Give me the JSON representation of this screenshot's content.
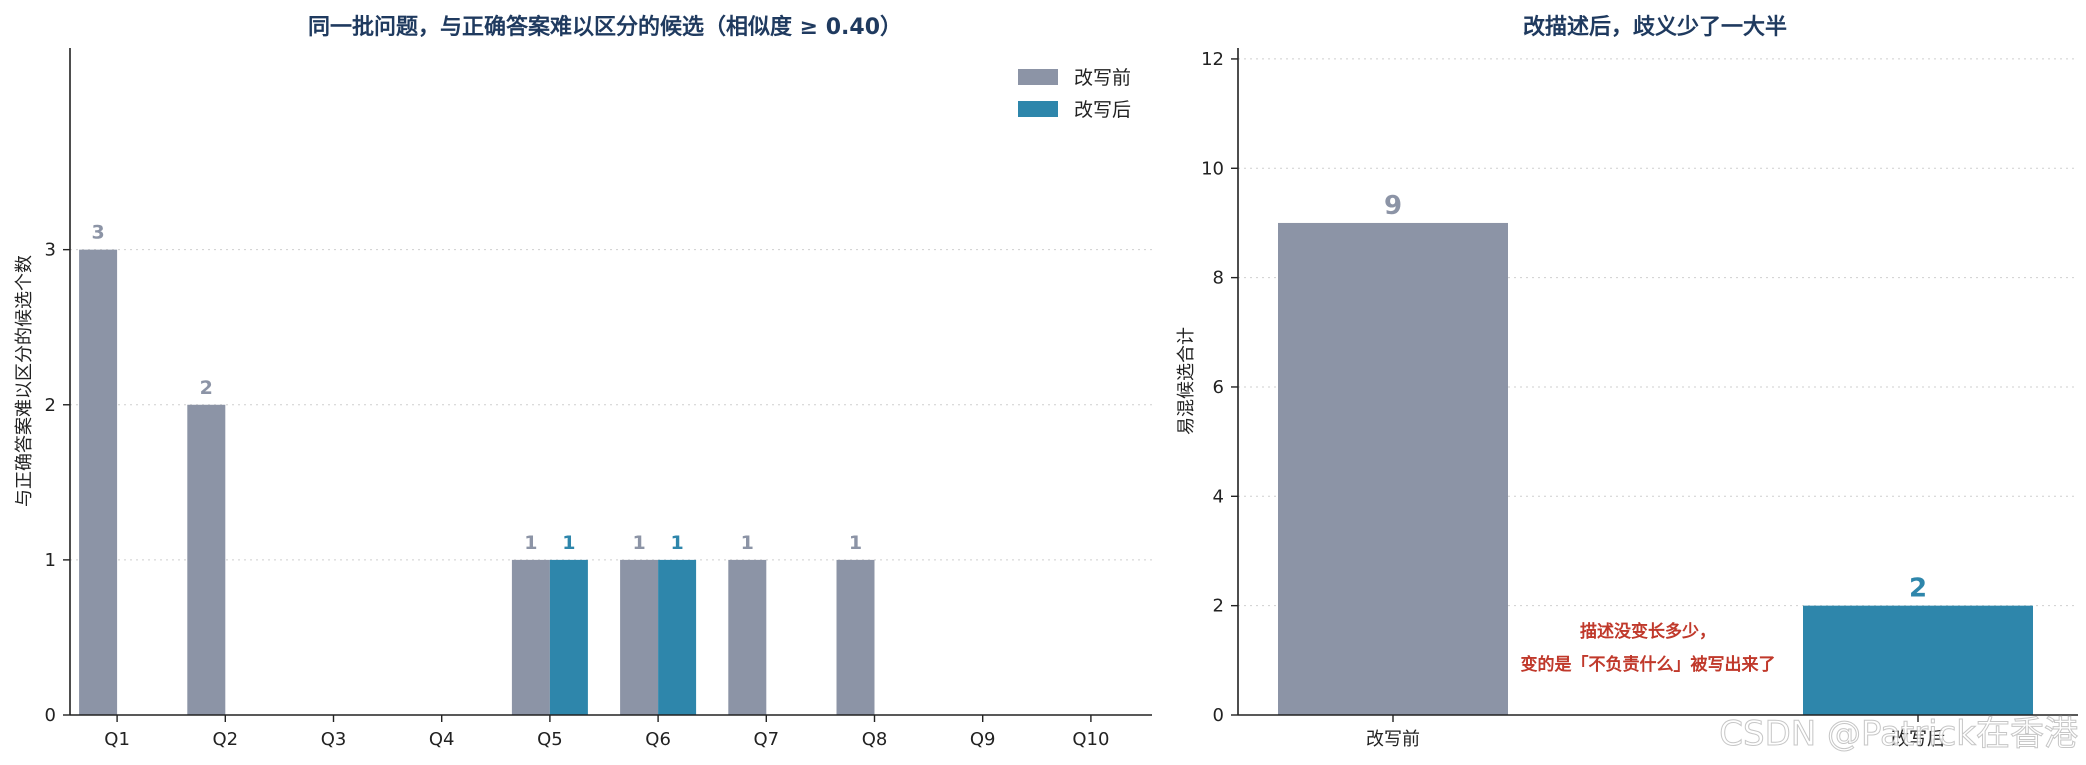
{
  "colors": {
    "before": "#8c94a6",
    "after": "#2e86ab",
    "title": "#1f3a5f",
    "annotation": "#c0392b"
  },
  "chart_data": [
    {
      "type": "bar",
      "title": "同一批问题，与正确答案难以区分的候选（相似度 ≥ 0.40）",
      "ylabel": "与正确答案难以区分的候选个数",
      "xlabel": "",
      "categories": [
        "Q1",
        "Q2",
        "Q3",
        "Q4",
        "Q5",
        "Q6",
        "Q7",
        "Q8",
        "Q9",
        "Q10"
      ],
      "series": [
        {
          "name": "改写前",
          "values": [
            3,
            2,
            0,
            0,
            1,
            1,
            1,
            1,
            0,
            0
          ]
        },
        {
          "name": "改写后",
          "values": [
            0,
            0,
            0,
            0,
            1,
            1,
            0,
            0,
            0,
            0
          ]
        }
      ],
      "yticks": [
        "0",
        "1",
        "2",
        "3"
      ],
      "ylim": [
        0,
        4.3
      ],
      "grid": true,
      "legend": "top-right"
    },
    {
      "type": "bar",
      "title": "改描述后，歧义少了一大半",
      "ylabel": "易混候选合计",
      "xlabel": "",
      "categories": [
        "改写前",
        "改写后"
      ],
      "values": [
        9,
        2
      ],
      "yticks": [
        "0",
        "2",
        "4",
        "6",
        "8",
        "10",
        "12"
      ],
      "ylim": [
        0,
        12.2
      ],
      "grid": true,
      "annotation": [
        "描述没变长多少，",
        "变的是「不负责什么」被写出来了"
      ]
    }
  ],
  "watermark": "CSDN @Patrick在香港"
}
